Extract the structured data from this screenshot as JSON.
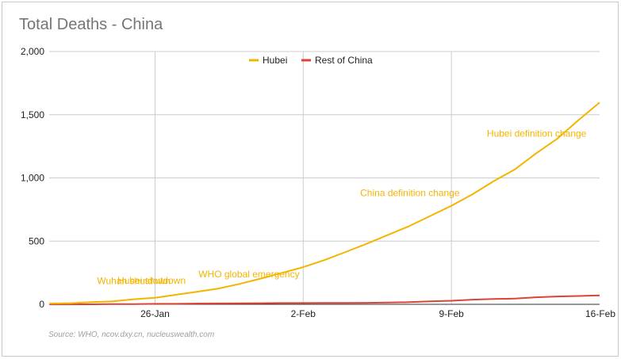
{
  "chart_data": {
    "type": "line",
    "title": "Total Deaths - China",
    "source": "Source: WHO, ncov.dxy.cn, nucleuswealth.com",
    "xlabel": "",
    "ylabel": "",
    "x": [
      "2020-01-21",
      "2020-01-22",
      "2020-01-23",
      "2020-01-24",
      "2020-01-25",
      "2020-01-26",
      "2020-01-27",
      "2020-01-28",
      "2020-01-29",
      "2020-01-30",
      "2020-01-31",
      "2020-02-01",
      "2020-02-02",
      "2020-02-03",
      "2020-02-04",
      "2020-02-05",
      "2020-02-06",
      "2020-02-07",
      "2020-02-08",
      "2020-02-09",
      "2020-02-10",
      "2020-02-11",
      "2020-02-12",
      "2020-02-13",
      "2020-02-14",
      "2020-02-15",
      "2020-02-16"
    ],
    "x_ticks": [
      "26-Jan",
      "2-Feb",
      "9-Feb",
      "16-Feb"
    ],
    "x_tick_dates": [
      "2020-01-26",
      "2020-02-02",
      "2020-02-09",
      "2020-02-16"
    ],
    "ylim": [
      0,
      2000
    ],
    "y_ticks": [
      0,
      500,
      1000,
      1500,
      2000
    ],
    "y_tick_labels": [
      "0",
      "500",
      "1,000",
      "1,500",
      "2,000"
    ],
    "grid": true,
    "legend_position": "top-center",
    "series": [
      {
        "name": "Hubei",
        "color": "#f4b400",
        "values": [
          6,
          9,
          17,
          24,
          40,
          52,
          76,
          100,
          125,
          162,
          204,
          249,
          294,
          350,
          414,
          479,
          549,
          618,
          699,
          780,
          871,
          974,
          1068,
          1194,
          1310,
          1457,
          1596
        ]
      },
      {
        "name": "Rest of China",
        "color": "#db4437",
        "values": [
          0,
          0,
          0,
          1,
          1,
          4,
          4,
          6,
          7,
          8,
          9,
          10,
          10,
          11,
          11,
          12,
          14,
          17,
          23,
          28,
          37,
          42,
          45,
          56,
          62,
          66,
          70
        ]
      }
    ],
    "annotations": [
      {
        "text": "Wuhan shutdown",
        "x": "2020-01-23"
      },
      {
        "text": "Hubei shutdown",
        "x": "2020-01-24"
      },
      {
        "text": "WHO global emergency",
        "x": "2020-01-30"
      },
      {
        "text": "China definition change",
        "x": "2020-02-09"
      },
      {
        "text": "Hubei definition change",
        "x": "2020-02-13"
      }
    ]
  }
}
